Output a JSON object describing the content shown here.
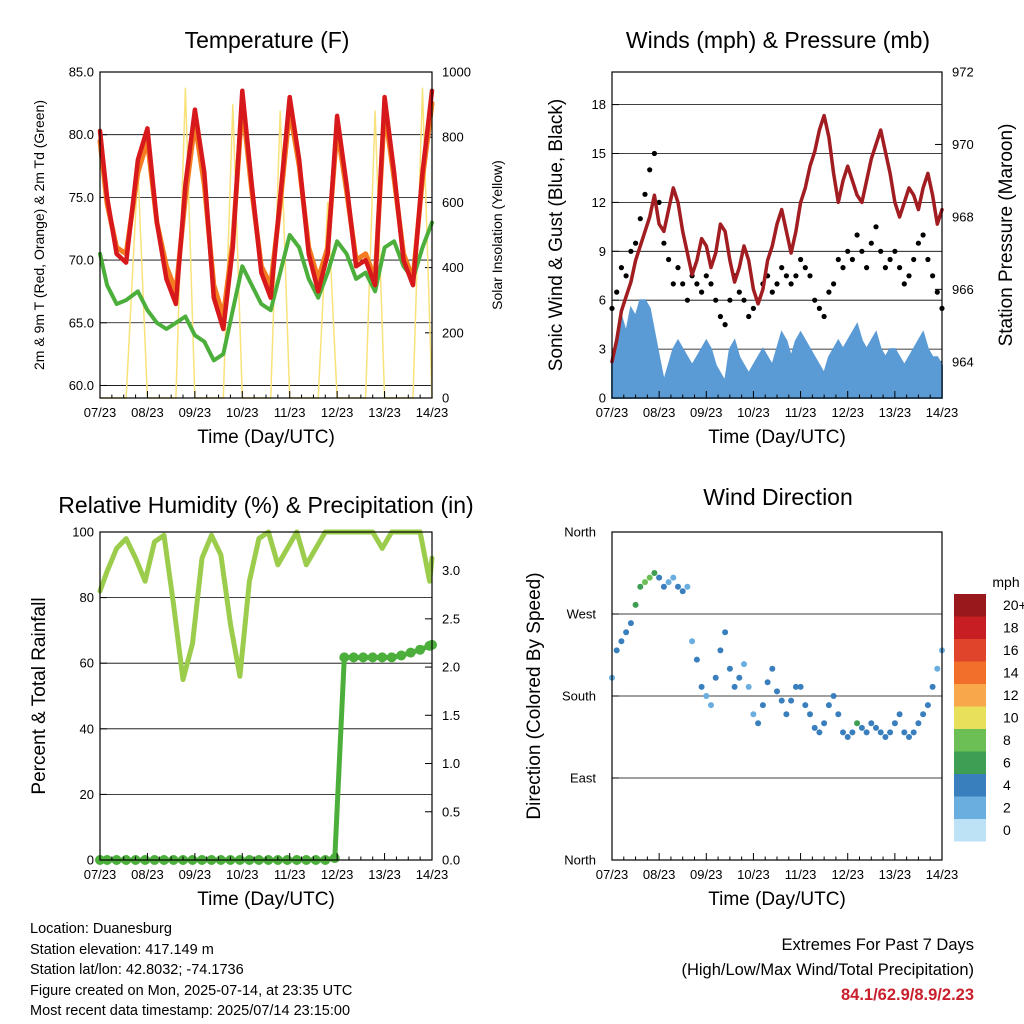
{
  "colors": {
    "temp_2m": "#d7191c",
    "temp_9m": "#f47b20",
    "dewpoint": "#4caf3c",
    "solar": "#f9e27a",
    "wind": "#5b9bd5",
    "gust": "#000000",
    "pressure": "#a11d21",
    "rh": "#9ccc4c",
    "precip": "#4caf3c",
    "extremes": "#c8202c"
  },
  "x_ticks": [
    "07/23",
    "08/23",
    "09/23",
    "10/23",
    "11/23",
    "12/23",
    "13/23",
    "14/23"
  ],
  "x_label": "Time (Day/UTC)",
  "chart_data": [
    {
      "id": "temperature",
      "type": "line",
      "title": "Temperature (F)",
      "ylabel": "2m & 9m T (Red, Orange) & 2m Td (Green)",
      "y2label": "Solar Insolation (Yellow)",
      "ylim": [
        59,
        85
      ],
      "yticks": [
        "60.0",
        "65.0",
        "70.0",
        "75.0",
        "80.0",
        "85.0"
      ],
      "y2lim": [
        0,
        1000
      ],
      "y2ticks": [
        "0",
        "200",
        "400",
        "600",
        "800",
        "1000"
      ],
      "x_day": [
        7.0,
        7.15,
        7.35,
        7.55,
        7.8,
        8.0,
        8.2,
        8.4,
        8.6,
        8.8,
        9.0,
        9.2,
        9.4,
        9.6,
        9.8,
        10.0,
        10.2,
        10.4,
        10.6,
        10.8,
        11.0,
        11.2,
        11.4,
        11.6,
        11.8,
        12.0,
        12.2,
        12.4,
        12.6,
        12.8,
        13.0,
        13.2,
        13.4,
        13.6,
        13.8,
        14.0
      ],
      "series": [
        {
          "id": "t2m",
          "values": [
            80.3,
            75.0,
            70.5,
            69.8,
            78.0,
            80.5,
            73.0,
            68.5,
            66.5,
            76.0,
            82.0,
            77.0,
            67.0,
            64.5,
            71.0,
            83.5,
            76.0,
            69.0,
            67.0,
            75.0,
            83.0,
            78.0,
            70.5,
            67.5,
            70.5,
            81.5,
            76.0,
            69.5,
            70.0,
            68.0,
            83.0,
            77.0,
            70.0,
            68.0,
            77.0,
            83.5
          ]
        },
        {
          "id": "t9m",
          "values": [
            79.5,
            74.5,
            71.0,
            70.5,
            77.0,
            79.5,
            73.0,
            69.5,
            67.5,
            75.0,
            81.0,
            76.0,
            68.0,
            65.5,
            71.5,
            82.5,
            75.5,
            69.5,
            68.0,
            74.5,
            82.0,
            77.5,
            71.0,
            68.5,
            71.0,
            80.5,
            75.5,
            70.0,
            70.5,
            68.5,
            82.0,
            76.5,
            70.5,
            68.5,
            76.5,
            82.5
          ]
        },
        {
          "id": "td2m",
          "values": [
            70.5,
            68.0,
            66.5,
            66.8,
            67.5,
            66.0,
            65.0,
            64.5,
            65.0,
            65.5,
            64.0,
            63.5,
            62.0,
            62.5,
            66.0,
            69.5,
            68.0,
            66.5,
            66.0,
            69.0,
            72.0,
            71.0,
            68.5,
            67.0,
            69.0,
            71.5,
            70.5,
            68.5,
            69.0,
            67.5,
            71.0,
            71.5,
            69.5,
            68.5,
            71.0,
            73.0
          ]
        },
        {
          "id": "solar",
          "values": [
            0,
            0,
            0,
            0,
            700,
            0,
            0,
            0,
            0,
            950,
            0,
            0,
            0,
            0,
            900,
            0,
            0,
            0,
            0,
            880,
            0,
            0,
            0,
            0,
            600,
            0,
            0,
            0,
            0,
            880,
            0,
            0,
            0,
            0,
            950,
            0
          ]
        }
      ]
    },
    {
      "id": "winds",
      "type": "scatter",
      "title": "Winds (mph) & Pressure (mb)",
      "ylabel": "Sonic Wind & Gust (Blue, Black)",
      "y2label": "Station Pressure (Maroon)",
      "ylim": [
        0,
        20
      ],
      "yticks": [
        "0",
        "3",
        "6",
        "9",
        "12",
        "15",
        "18"
      ],
      "y2lim": [
        963,
        972
      ],
      "y2ticks": [
        "964",
        "966",
        "968",
        "970",
        "972"
      ],
      "x_day": [
        7.0,
        7.1,
        7.2,
        7.3,
        7.4,
        7.5,
        7.6,
        7.7,
        7.8,
        7.9,
        8.0,
        8.1,
        8.2,
        8.3,
        8.4,
        8.5,
        8.6,
        8.7,
        8.8,
        8.9,
        9.0,
        9.1,
        9.2,
        9.3,
        9.4,
        9.5,
        9.6,
        9.7,
        9.8,
        9.9,
        10.0,
        10.1,
        10.2,
        10.3,
        10.4,
        10.5,
        10.6,
        10.7,
        10.8,
        10.9,
        11.0,
        11.1,
        11.2,
        11.3,
        11.4,
        11.5,
        11.6,
        11.7,
        11.8,
        11.9,
        12.0,
        12.1,
        12.2,
        12.3,
        12.4,
        12.5,
        12.6,
        12.7,
        12.8,
        12.9,
        13.0,
        13.1,
        13.2,
        13.3,
        13.4,
        13.5,
        13.6,
        13.7,
        13.8,
        13.9,
        14.0
      ],
      "series": [
        {
          "id": "sonic_wind",
          "values": [
            2.5,
            3.0,
            5.0,
            4.0,
            5.5,
            5.0,
            6.0,
            6.0,
            5.5,
            4.0,
            2.5,
            1.0,
            2.0,
            3.0,
            3.5,
            3.0,
            2.5,
            2.0,
            2.5,
            3.0,
            3.5,
            3.0,
            2.0,
            1.5,
            1.0,
            3.0,
            3.5,
            2.5,
            2.0,
            1.5,
            2.0,
            2.5,
            3.0,
            2.5,
            2.0,
            3.0,
            4.0,
            3.5,
            2.5,
            3.5,
            4.0,
            3.5,
            3.0,
            2.5,
            2.0,
            1.5,
            2.5,
            3.0,
            3.5,
            3.0,
            3.5,
            4.0,
            4.5,
            3.5,
            3.0,
            3.5,
            4.0,
            3.0,
            2.5,
            3.0,
            3.0,
            2.5,
            2.0,
            2.5,
            3.0,
            3.5,
            4.0,
            3.0,
            2.5,
            2.5,
            2.0
          ]
        },
        {
          "id": "gust",
          "values": [
            5.5,
            6.5,
            8.0,
            7.5,
            9.0,
            9.5,
            11.0,
            12.5,
            14.0,
            15.0,
            12.0,
            9.5,
            8.5,
            7.0,
            8.0,
            7.0,
            6.0,
            7.5,
            7.0,
            6.5,
            7.5,
            7.0,
            6.0,
            5.0,
            4.5,
            6.0,
            7.5,
            6.5,
            6.0,
            5.0,
            5.5,
            6.0,
            7.0,
            7.5,
            6.5,
            7.0,
            8.0,
            7.5,
            7.0,
            7.5,
            8.5,
            8.0,
            7.5,
            6.0,
            5.5,
            5.0,
            6.5,
            7.0,
            8.5,
            8.0,
            9.0,
            8.5,
            10.0,
            9.0,
            8.0,
            9.5,
            10.5,
            9.0,
            8.0,
            8.5,
            9.0,
            8.0,
            7.0,
            7.5,
            8.5,
            9.5,
            10.0,
            8.5,
            7.5,
            6.5,
            5.5
          ]
        },
        {
          "id": "pressure",
          "values": [
            964.0,
            964.6,
            965.4,
            965.8,
            966.2,
            966.8,
            967.2,
            967.6,
            968.0,
            968.6,
            967.8,
            967.6,
            968.2,
            968.8,
            968.4,
            967.6,
            967.0,
            966.4,
            966.8,
            967.4,
            967.2,
            966.6,
            967.0,
            967.8,
            967.6,
            966.8,
            966.2,
            966.6,
            967.2,
            966.8,
            966.0,
            965.6,
            966.0,
            966.8,
            967.2,
            967.8,
            968.2,
            967.6,
            967.0,
            967.6,
            968.4,
            968.8,
            969.4,
            969.8,
            970.4,
            970.8,
            970.2,
            969.2,
            968.4,
            969.0,
            969.4,
            969.0,
            968.6,
            968.4,
            969.0,
            969.6,
            970.0,
            970.4,
            969.8,
            969.2,
            968.4,
            968.0,
            968.4,
            968.8,
            968.6,
            968.2,
            968.8,
            969.2,
            968.6,
            967.8,
            968.2
          ]
        }
      ]
    },
    {
      "id": "humidity",
      "type": "line",
      "title": "Relative Humidity (%) & Precipitation (in)",
      "ylabel": "Percent & Total Rainfall",
      "ylim": [
        0,
        100
      ],
      "yticks": [
        "0",
        "20",
        "40",
        "60",
        "80",
        "100"
      ],
      "y2lim": [
        0,
        3.4
      ],
      "y2ticks": [
        "0.0",
        "0.5",
        "1.0",
        "1.5",
        "2.0",
        "2.5",
        "3.0"
      ],
      "x_day": [
        7.0,
        7.15,
        7.35,
        7.55,
        7.75,
        7.95,
        8.15,
        8.35,
        8.55,
        8.75,
        8.95,
        9.15,
        9.35,
        9.55,
        9.75,
        9.95,
        10.15,
        10.35,
        10.55,
        10.75,
        10.95,
        11.15,
        11.35,
        11.55,
        11.75,
        11.95,
        12.15,
        12.35,
        12.55,
        12.75,
        12.95,
        13.15,
        13.35,
        13.55,
        13.75,
        13.95,
        14.0
      ],
      "series": [
        {
          "id": "rh",
          "values": [
            82,
            88,
            95,
            98,
            92,
            85,
            97,
            99,
            78,
            55,
            66,
            92,
            99,
            93,
            72,
            56,
            85,
            98,
            100,
            90,
            95,
            100,
            90,
            95,
            100,
            100,
            100,
            100,
            100,
            100,
            95,
            100,
            100,
            100,
            100,
            85,
            92
          ]
        },
        {
          "id": "precip_total",
          "values": [
            0,
            0,
            0,
            0,
            0,
            0,
            0,
            0,
            0,
            0,
            0,
            0,
            0,
            0,
            0,
            0,
            0,
            0,
            0,
            0,
            0,
            0,
            0,
            0,
            0,
            0.02,
            2.1,
            2.1,
            2.1,
            2.1,
            2.1,
            2.1,
            2.12,
            2.15,
            2.18,
            2.22,
            2.23
          ]
        }
      ]
    },
    {
      "id": "wind_direction",
      "type": "scatter",
      "title": "Wind Direction",
      "ylabel": "Direction (Colored By Speed)",
      "y_labels": [
        "North",
        "West",
        "South",
        "East",
        "North"
      ],
      "legend_title": "mph",
      "legend_labels": [
        "20+",
        "18",
        "16",
        "14",
        "12",
        "10",
        "8",
        "6",
        "4",
        "2",
        "0"
      ],
      "legend_colors": [
        "#99181c",
        "#c71e24",
        "#e0442b",
        "#f26e2b",
        "#f8a84a",
        "#e8e05a",
        "#6bbf55",
        "#3d9e54",
        "#3a7fbd",
        "#6aaee0",
        "#bde2f5"
      ],
      "x_day": [
        7.0,
        7.1,
        7.2,
        7.3,
        7.4,
        7.5,
        7.6,
        7.7,
        7.8,
        7.9,
        8.0,
        8.1,
        8.2,
        8.3,
        8.4,
        8.5,
        8.6,
        8.7,
        8.8,
        8.9,
        9.0,
        9.1,
        9.2,
        9.3,
        9.4,
        9.5,
        9.6,
        9.7,
        9.8,
        9.9,
        10.0,
        10.1,
        10.2,
        10.3,
        10.4,
        10.5,
        10.6,
        10.7,
        10.8,
        10.9,
        11.0,
        11.1,
        11.2,
        11.3,
        11.4,
        11.5,
        11.6,
        11.7,
        11.8,
        11.9,
        12.0,
        12.1,
        12.2,
        12.3,
        12.4,
        12.5,
        12.6,
        12.7,
        12.8,
        12.9,
        13.0,
        13.1,
        13.2,
        13.3,
        13.4,
        13.5,
        13.6,
        13.7,
        13.8,
        13.9,
        14.0
      ],
      "series": [
        {
          "id": "direction_deg",
          "values": [
            200,
            230,
            240,
            250,
            260,
            280,
            300,
            305,
            310,
            315,
            310,
            300,
            305,
            310,
            300,
            295,
            300,
            240,
            220,
            190,
            180,
            170,
            200,
            230,
            250,
            210,
            190,
            200,
            215,
            190,
            160,
            150,
            170,
            195,
            210,
            185,
            175,
            160,
            175,
            190,
            190,
            170,
            160,
            145,
            140,
            150,
            170,
            180,
            160,
            140,
            135,
            140,
            150,
            145,
            140,
            150,
            145,
            140,
            135,
            140,
            150,
            160,
            140,
            135,
            140,
            150,
            160,
            170,
            190,
            210,
            230
          ]
        },
        {
          "id": "speed",
          "values": [
            2,
            3,
            3,
            4,
            4,
            5,
            6,
            7,
            7,
            6,
            4,
            3,
            2,
            2,
            3,
            3,
            2,
            2,
            3,
            3,
            2,
            2,
            3,
            3,
            3,
            3,
            4,
            3,
            2,
            2,
            2,
            3,
            3,
            3,
            3,
            3,
            4,
            3,
            3,
            4,
            4,
            4,
            3,
            3,
            3,
            3,
            3,
            3,
            4,
            4,
            4,
            4,
            5,
            4,
            3,
            3,
            4,
            3,
            3,
            4,
            4,
            3,
            3,
            3,
            3,
            3,
            4,
            3,
            3,
            2,
            2
          ]
        }
      ]
    }
  ],
  "info": {
    "location": "Location: Duanesburg",
    "elevation": "Station elevation: 417.149 m",
    "latlon": "Station lat/lon: 42.8032; -74.1736",
    "created": "Figure created on Mon, 2025-07-14, at 23:35 UTC",
    "recent": "Most recent data timestamp: 2025/07/14 23:15:00"
  },
  "extremes": {
    "line1": "Extremes For Past 7 Days",
    "line2": "(High/Low/Max Wind/Total Precipitation)",
    "values": "84.1/62.9/8.9/2.23"
  }
}
